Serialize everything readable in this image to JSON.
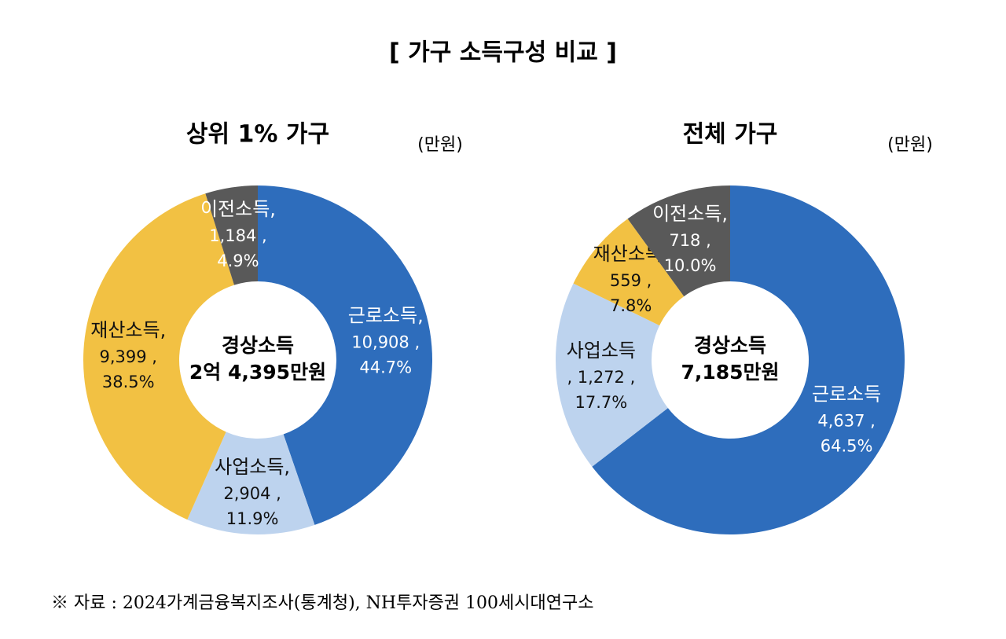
{
  "title": "[ 가구 소득구성 비교 ]",
  "source": "※ 자료 : 2024가계금융복지조사(통계청), NH투자증권 100세시대연구소",
  "chart_data": [
    {
      "type": "pie",
      "title": "상위 1% 가구",
      "unit": "(만원)",
      "center_label": [
        "경상소득",
        "2억 4,395만원"
      ],
      "categories": [
        "근로소득,",
        "사업소득,",
        "재산소득,",
        "이전소득,"
      ],
      "values": [
        10908,
        2904,
        9399,
        1184
      ],
      "value_labels": [
        "10,908 ,",
        "2,904 ,",
        "9,399 ,",
        "1,184 ,"
      ],
      "percents": [
        44.7,
        11.9,
        38.5,
        4.9
      ],
      "percent_labels": [
        "44.7%",
        "11.9%",
        "38.5%",
        "4.9%"
      ],
      "colors": [
        "#2e6dbc",
        "#bdd3ee",
        "#f2c143",
        "#595959"
      ]
    },
    {
      "type": "pie",
      "title": "전체 가구",
      "unit": "(만원)",
      "center_label": [
        "경상소득",
        "7,185만원"
      ],
      "categories": [
        "근로소득",
        "사업소득",
        "재산소득,",
        "이전소득,"
      ],
      "values": [
        4637,
        1272,
        559,
        718
      ],
      "value_labels": [
        "4,637 ,",
        ", 1,272 ,",
        "559 ,",
        "718 ,"
      ],
      "percents": [
        64.5,
        17.7,
        7.8,
        10.0
      ],
      "percent_labels": [
        "64.5%",
        "17.7%",
        "7.8%",
        "10.0%"
      ],
      "colors": [
        "#2e6dbc",
        "#bdd3ee",
        "#f2c143",
        "#595959"
      ]
    }
  ]
}
